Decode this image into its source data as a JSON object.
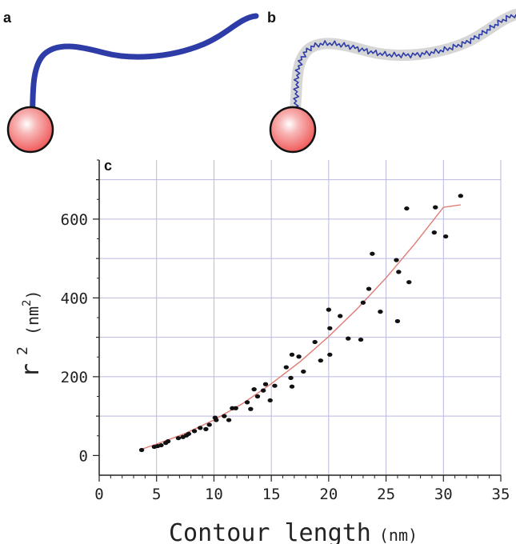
{
  "panels": {
    "a": "a",
    "b": "b",
    "c": "c"
  },
  "colors": {
    "polymer": "#2e3ca8",
    "sphere_fill": "#f26a6a",
    "fit_line": "#e07a72",
    "grid": "#b9b9e0",
    "points": "#111111"
  },
  "chart_data": {
    "type": "scatter",
    "title": "",
    "xlabel": "Contour length",
    "xlabel_unit": "(nm)",
    "ylabel_main": "r",
    "ylabel_sup": "2",
    "ylabel_unit_pre": "(nm",
    "ylabel_unit_sup": "2",
    "ylabel_unit_post": ")",
    "xlim": [
      0,
      35
    ],
    "ylim": [
      -50,
      750
    ],
    "xticks": [
      0,
      5,
      10,
      15,
      20,
      25,
      30,
      35
    ],
    "yticks": [
      0,
      200,
      400,
      600
    ],
    "xgrid": [
      5,
      10,
      15,
      20,
      25,
      30,
      35
    ],
    "ygrid": [
      100,
      200,
      300,
      400,
      500,
      600,
      700
    ],
    "grid": true,
    "points": [
      [
        3.7,
        14
      ],
      [
        4.8,
        22
      ],
      [
        5.1,
        24
      ],
      [
        5.4,
        26
      ],
      [
        5.8,
        32
      ],
      [
        6.0,
        36
      ],
      [
        6.9,
        44
      ],
      [
        7.3,
        47
      ],
      [
        7.6,
        51
      ],
      [
        7.8,
        55
      ],
      [
        8.3,
        62
      ],
      [
        8.8,
        70
      ],
      [
        9.3,
        67
      ],
      [
        9.6,
        78
      ],
      [
        10.1,
        96
      ],
      [
        10.2,
        90
      ],
      [
        10.9,
        100
      ],
      [
        11.3,
        90
      ],
      [
        11.6,
        120
      ],
      [
        11.9,
        120
      ],
      [
        12.9,
        135
      ],
      [
        13.2,
        118
      ],
      [
        13.5,
        168
      ],
      [
        13.8,
        150
      ],
      [
        14.3,
        165
      ],
      [
        14.5,
        181
      ],
      [
        14.9,
        140
      ],
      [
        15.3,
        177
      ],
      [
        16.3,
        224
      ],
      [
        16.7,
        197
      ],
      [
        16.8,
        175
      ],
      [
        16.8,
        256
      ],
      [
        17.4,
        251
      ],
      [
        17.8,
        213
      ],
      [
        18.8,
        288
      ],
      [
        19.3,
        241
      ],
      [
        20.0,
        370
      ],
      [
        20.1,
        323
      ],
      [
        20.1,
        256
      ],
      [
        21.0,
        354
      ],
      [
        21.7,
        297
      ],
      [
        22.8,
        294
      ],
      [
        23.0,
        388
      ],
      [
        23.5,
        423
      ],
      [
        23.8,
        512
      ],
      [
        24.5,
        365
      ],
      [
        25.9,
        496
      ],
      [
        26.0,
        341
      ],
      [
        26.1,
        466
      ],
      [
        26.8,
        627
      ],
      [
        27.0,
        440
      ],
      [
        29.2,
        566
      ],
      [
        29.3,
        630
      ],
      [
        30.2,
        556
      ],
      [
        31.5,
        659
      ]
    ],
    "fit_curve": [
      [
        3.7,
        16
      ],
      [
        5,
        29
      ],
      [
        7.5,
        56
      ],
      [
        10,
        90
      ],
      [
        12.5,
        132
      ],
      [
        15,
        182
      ],
      [
        17.5,
        238
      ],
      [
        20,
        302
      ],
      [
        22.5,
        373
      ],
      [
        25,
        451
      ],
      [
        27.5,
        537
      ],
      [
        30,
        630
      ],
      [
        31.5,
        636
      ]
    ]
  }
}
